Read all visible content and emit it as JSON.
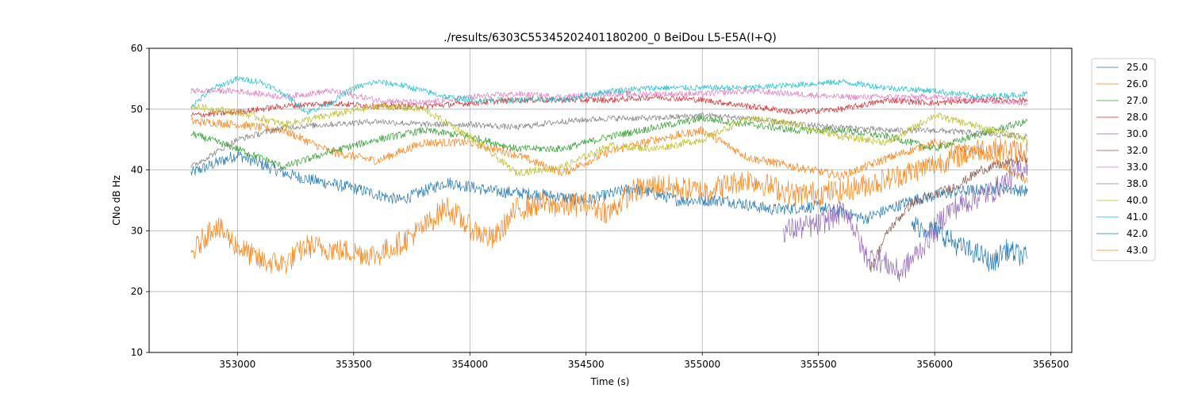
{
  "chart_data": {
    "type": "line",
    "title": "./results/6303C55345202401180200_0 BeiDou L5-E5A(I+Q)",
    "xlabel": "Time (s)",
    "ylabel": "CNo dB Hz",
    "xlim": [
      352620,
      356590
    ],
    "ylim": [
      10,
      60
    ],
    "xticks": [
      353000,
      353500,
      354000,
      354500,
      355000,
      355500,
      356000,
      356500
    ],
    "yticks": [
      10,
      20,
      30,
      40,
      50,
      60
    ],
    "grid": true,
    "legend_position": "right-outside",
    "series": [
      {
        "name": "25.0",
        "color": "#1f77b4",
        "noise": 1.0,
        "x": [
          352800,
          353000,
          353200,
          353300,
          353500,
          353700,
          353900,
          354100,
          354300,
          354500,
          354700,
          354900,
          355100,
          355300,
          355500,
          355700,
          355900,
          356100,
          356300,
          356400
        ],
        "y": [
          39.5,
          42.5,
          39.5,
          38.5,
          37.0,
          35.0,
          38.0,
          36.5,
          36.0,
          35.0,
          37.0,
          35.0,
          35.0,
          33.5,
          34.0,
          32.0,
          35.0,
          36.5,
          37.0,
          36.5
        ]
      },
      {
        "name": "26.0",
        "color": "#ff7f0e",
        "noise": 0.7,
        "x": [
          352800,
          353000,
          353200,
          353400,
          353600,
          353800,
          354000,
          354200,
          354400,
          354600,
          354800,
          355000,
          355200,
          355400,
          355600,
          355800,
          356000,
          356200,
          356400
        ],
        "y": [
          48.0,
          47.5,
          46.5,
          43.0,
          41.5,
          44.5,
          44.5,
          42.5,
          39.5,
          43.0,
          45.0,
          46.5,
          42.0,
          40.5,
          39.0,
          42.0,
          44.5,
          43.0,
          38.0
        ]
      },
      {
        "name": "27.0",
        "color": "#2ca02c",
        "noise": 0.6,
        "x": [
          352800,
          353000,
          353200,
          353400,
          353600,
          353800,
          354000,
          354200,
          354400,
          354600,
          354800,
          355000,
          355200,
          355400,
          355600,
          355800,
          356000,
          356200,
          356400
        ],
        "y": [
          46.0,
          43.5,
          40.5,
          43.0,
          45.0,
          46.5,
          45.5,
          43.5,
          43.5,
          45.5,
          47.0,
          48.5,
          47.5,
          46.5,
          46.5,
          45.5,
          43.5,
          46.0,
          48.0
        ]
      },
      {
        "name": "28.0",
        "color": "#d62728",
        "noise": 0.5,
        "x": [
          352800,
          353000,
          353200,
          353400,
          353600,
          353800,
          354000,
          354200,
          354400,
          354600,
          354800,
          355000,
          355200,
          355400,
          355600,
          355800,
          356000,
          356200,
          356400
        ],
        "y": [
          49.0,
          49.5,
          50.5,
          51.0,
          50.5,
          50.5,
          51.0,
          51.5,
          51.5,
          51.5,
          52.0,
          51.5,
          50.5,
          49.5,
          50.0,
          51.5,
          51.0,
          51.5,
          51.5
        ]
      },
      {
        "name": "30.0",
        "color": "#9467bd",
        "noise": 2.0,
        "x": [
          355350,
          355500,
          355620,
          355700,
          355800,
          355850,
          355950,
          356050,
          356150,
          356250,
          356400
        ],
        "y": [
          30.0,
          31.0,
          33.5,
          26.0,
          24.5,
          23.0,
          27.5,
          33.0,
          35.0,
          36.5,
          41.0
        ]
      },
      {
        "name": "32.0",
        "color": "#8c564b",
        "noise": 0.8,
        "x": [
          355720,
          355800,
          355900,
          356000,
          356100,
          356200,
          356300,
          356400
        ],
        "y": [
          23.5,
          30.0,
          34.5,
          36.0,
          37.5,
          40.0,
          41.0,
          42.0
        ]
      },
      {
        "name": "33.0",
        "color": "#e377c2",
        "noise": 0.5,
        "x": [
          352800,
          353000,
          353200,
          353400,
          353600,
          353800,
          354000,
          354200,
          354400,
          354600,
          354800,
          355000,
          355200,
          355400,
          355600,
          355800,
          356000,
          356200,
          356400
        ],
        "y": [
          53.0,
          53.0,
          52.0,
          53.0,
          51.5,
          51.0,
          52.0,
          52.5,
          52.0,
          52.5,
          52.5,
          52.5,
          53.0,
          52.5,
          52.0,
          52.0,
          52.0,
          51.5,
          51.0
        ]
      },
      {
        "name": "38.0",
        "color": "#7f7f7f",
        "noise": 0.5,
        "x": [
          352800,
          353000,
          353200,
          353400,
          353600,
          353800,
          354000,
          354200,
          354400,
          354600,
          354800,
          355000,
          355200,
          355400,
          355600,
          355800,
          356000,
          356200,
          356400
        ],
        "y": [
          40.5,
          45.0,
          47.0,
          47.5,
          48.0,
          47.5,
          47.5,
          47.0,
          48.0,
          48.5,
          48.5,
          49.0,
          48.5,
          47.5,
          47.0,
          46.5,
          46.5,
          46.0,
          45.5
        ]
      },
      {
        "name": "40.0",
        "color": "#bcbd22",
        "noise": 0.6,
        "x": [
          352800,
          353000,
          353200,
          353400,
          353600,
          353800,
          354000,
          354200,
          354400,
          354600,
          354800,
          355000,
          355200,
          355400,
          355600,
          355800,
          356000,
          356200,
          356400
        ],
        "y": [
          50.5,
          49.5,
          47.5,
          49.0,
          50.5,
          50.0,
          45.5,
          39.5,
          40.5,
          44.0,
          43.5,
          45.0,
          48.5,
          47.5,
          45.5,
          44.5,
          49.0,
          47.0,
          45.0
        ]
      },
      {
        "name": "41.0",
        "color": "#17becf",
        "noise": 0.5,
        "x": [
          352800,
          352900,
          353000,
          353100,
          353200,
          353300,
          353400,
          353500,
          353600,
          353700,
          353800,
          353900,
          354000,
          354200,
          354400,
          354600,
          354800,
          355000,
          355200,
          355400,
          355600,
          355800,
          356000,
          356200,
          356400
        ],
        "y": [
          50.5,
          53.5,
          55.0,
          54.5,
          52.5,
          49.5,
          51.0,
          53.5,
          54.5,
          54.0,
          53.0,
          52.0,
          51.5,
          51.5,
          51.5,
          53.0,
          53.5,
          53.5,
          53.5,
          54.0,
          54.5,
          53.5,
          53.0,
          52.0,
          52.5
        ]
      },
      {
        "name": "42.0",
        "color": "#1f77b4",
        "noise": 1.8,
        "x": [
          355900,
          356000,
          356050,
          356100,
          356200,
          356250,
          356300,
          356400
        ],
        "y": [
          31.0,
          30.0,
          29.0,
          27.5,
          26.0,
          24.5,
          27.0,
          25.5
        ]
      },
      {
        "name": "43.0",
        "color": "#ff7f0e",
        "noise": 2.0,
        "x": [
          352800,
          352900,
          353000,
          353100,
          353200,
          353300,
          353400,
          353500,
          353600,
          353700,
          353800,
          353900,
          354000,
          354100,
          354200,
          354300,
          354400,
          354500,
          354600,
          354700,
          354800,
          355000,
          355200,
          355400,
          355600,
          355800,
          356000,
          356200,
          356400
        ],
        "y": [
          26.0,
          31.0,
          27.5,
          25.0,
          24.5,
          27.5,
          27.0,
          26.5,
          26.0,
          28.0,
          30.5,
          34.0,
          30.5,
          28.5,
          33.5,
          34.5,
          34.0,
          34.5,
          33.0,
          36.5,
          37.5,
          36.5,
          38.5,
          36.0,
          36.5,
          38.5,
          41.0,
          43.5,
          43.0
        ]
      }
    ]
  }
}
